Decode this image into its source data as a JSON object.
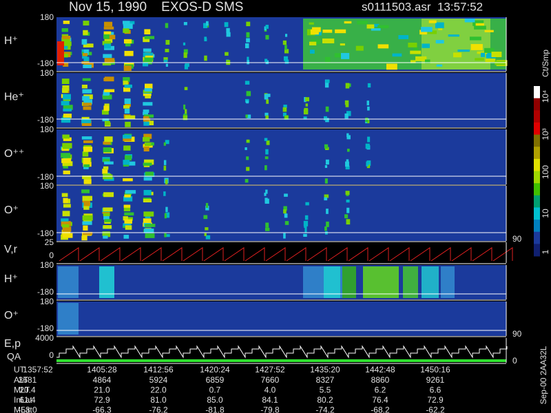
{
  "header": {
    "title": "Nov 15, 1990    EXOS-D SMS",
    "file": "s0111503.asr  13:57:52"
  },
  "panels": [
    {
      "label": "H⁺",
      "ticks": [
        180,
        -180
      ]
    },
    {
      "label": "He⁺",
      "ticks": [
        180,
        -180
      ]
    },
    {
      "label": "O⁺⁺",
      "ticks": [
        180,
        -180
      ]
    },
    {
      "label": "O⁺",
      "ticks": [
        180,
        -180
      ],
      "right_tick": 90
    },
    {
      "label": "V,r",
      "ticks": [
        25,
        0
      ]
    },
    {
      "label": "H⁺",
      "ticks": [
        180,
        -180
      ]
    },
    {
      "label": "O⁺",
      "ticks": [
        180,
        -180
      ],
      "right_tick": 90
    },
    {
      "label": "E,p",
      "label2": "QA",
      "ticks": [
        4000,
        0
      ],
      "right_tick": 0
    }
  ],
  "colorbar": {
    "unit": "Ct/Smp",
    "ticks": [
      "10⁴",
      "10³",
      "100",
      "10",
      "1"
    ]
  },
  "footer": "Sep-00 2AA32L",
  "table": {
    "rows": [
      {
        "label": "UT",
        "values": [
          "1357:52",
          "1405:28",
          "1412:56",
          "1420:24",
          "1427:52",
          "1435:20",
          "1442:48",
          "1450:16"
        ]
      },
      {
        "label": "ALT",
        "values": [
          "3681",
          "4864",
          "5924",
          "6859",
          "7660",
          "8327",
          "8860",
          "9261"
        ]
      },
      {
        "label": "MLT",
        "values": [
          "20.4",
          "21.0",
          "22.0",
          "0.7",
          "4.0",
          "5.5",
          "6.2",
          "6.6"
        ]
      },
      {
        "label": "InLat",
        "values": [
          "61.4",
          "72.9",
          "81.0",
          "85.0",
          "84.1",
          "80.2",
          "76.4",
          "72.9"
        ]
      },
      {
        "label": "MLat",
        "values": [
          "-53.0",
          "-66.3",
          "-76.2",
          "-81.8",
          "-79.8",
          "-74.2",
          "-68.2",
          "-62.2"
        ]
      }
    ]
  }
}
